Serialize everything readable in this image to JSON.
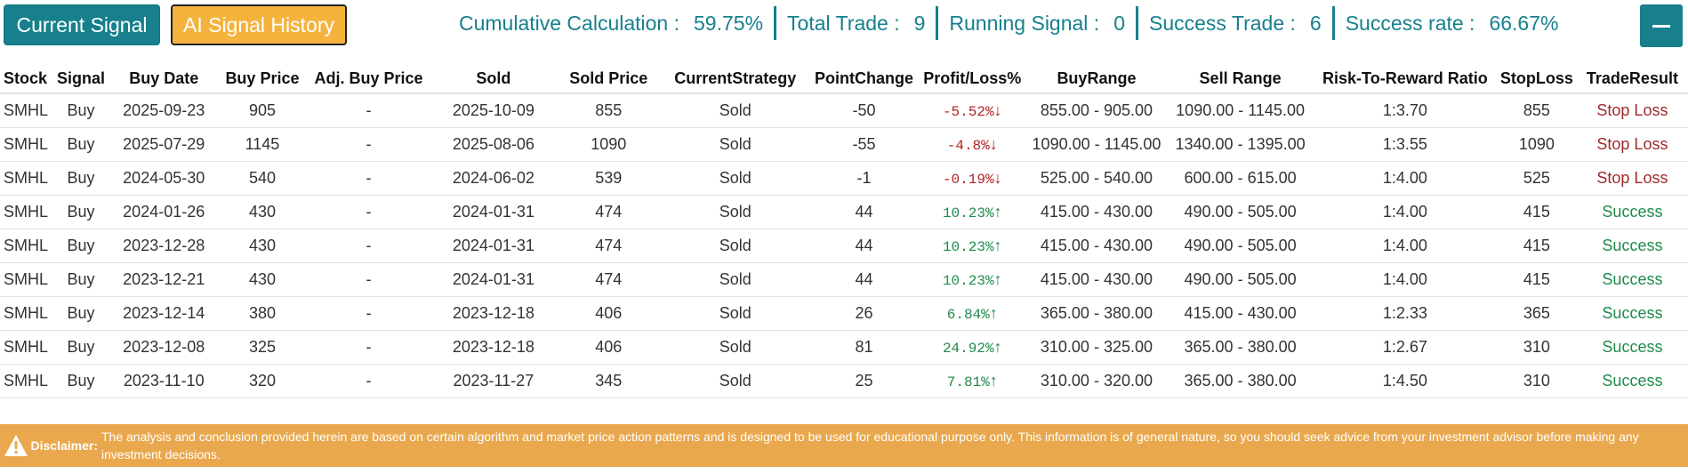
{
  "header": {
    "current_signal_label": "Current Signal",
    "history_label": "AI Signal History",
    "stats": [
      {
        "label": "Cumulative Calculation :",
        "value": "59.75%"
      },
      {
        "label": "Total Trade :",
        "value": "9"
      },
      {
        "label": "Running Signal :",
        "value": "0"
      },
      {
        "label": "Success Trade :",
        "value": "6"
      },
      {
        "label": "Success rate :",
        "value": "66.67%"
      }
    ]
  },
  "table": {
    "columns": [
      "Stock",
      "Signal",
      "Buy Date",
      "Buy Price",
      "Adj. Buy Price",
      "Sold",
      "Sold Price",
      "CurrentStrategy",
      "PointChange",
      "Profit/Loss%",
      "BuyRange",
      "Sell Range",
      "Risk-To-Reward Ratio",
      "StopLoss",
      "TradeResult"
    ],
    "rows": [
      {
        "stock": "SMHL",
        "signal": "Buy",
        "buy_date": "2025-09-23",
        "buy_price": "905",
        "adj_buy_price": "-",
        "sold": "2025-10-09",
        "sold_price": "855",
        "strategy": "Sold",
        "point_change": "-50",
        "pl": "-5.52%",
        "dir": "down",
        "buy_range": "855.00 - 905.00",
        "sell_range": "1090.00 - 1145.00",
        "rr": "1:3.70",
        "stop_loss": "855",
        "result": "Stop Loss"
      },
      {
        "stock": "SMHL",
        "signal": "Buy",
        "buy_date": "2025-07-29",
        "buy_price": "1145",
        "adj_buy_price": "-",
        "sold": "2025-08-06",
        "sold_price": "1090",
        "strategy": "Sold",
        "point_change": "-55",
        "pl": "-4.8%",
        "dir": "down",
        "buy_range": "1090.00 - 1145.00",
        "sell_range": "1340.00 - 1395.00",
        "rr": "1:3.55",
        "stop_loss": "1090",
        "result": "Stop Loss"
      },
      {
        "stock": "SMHL",
        "signal": "Buy",
        "buy_date": "2024-05-30",
        "buy_price": "540",
        "adj_buy_price": "-",
        "sold": "2024-06-02",
        "sold_price": "539",
        "strategy": "Sold",
        "point_change": "-1",
        "pl": "-0.19%",
        "dir": "down",
        "buy_range": "525.00 - 540.00",
        "sell_range": "600.00 - 615.00",
        "rr": "1:4.00",
        "stop_loss": "525",
        "result": "Stop Loss"
      },
      {
        "stock": "SMHL",
        "signal": "Buy",
        "buy_date": "2024-01-26",
        "buy_price": "430",
        "adj_buy_price": "-",
        "sold": "2024-01-31",
        "sold_price": "474",
        "strategy": "Sold",
        "point_change": "44",
        "pl": "10.23%",
        "dir": "up",
        "buy_range": "415.00 - 430.00",
        "sell_range": "490.00 - 505.00",
        "rr": "1:4.00",
        "stop_loss": "415",
        "result": "Success"
      },
      {
        "stock": "SMHL",
        "signal": "Buy",
        "buy_date": "2023-12-28",
        "buy_price": "430",
        "adj_buy_price": "-",
        "sold": "2024-01-31",
        "sold_price": "474",
        "strategy": "Sold",
        "point_change": "44",
        "pl": "10.23%",
        "dir": "up",
        "buy_range": "415.00 - 430.00",
        "sell_range": "490.00 - 505.00",
        "rr": "1:4.00",
        "stop_loss": "415",
        "result": "Success"
      },
      {
        "stock": "SMHL",
        "signal": "Buy",
        "buy_date": "2023-12-21",
        "buy_price": "430",
        "adj_buy_price": "-",
        "sold": "2024-01-31",
        "sold_price": "474",
        "strategy": "Sold",
        "point_change": "44",
        "pl": "10.23%",
        "dir": "up",
        "buy_range": "415.00 - 430.00",
        "sell_range": "490.00 - 505.00",
        "rr": "1:4.00",
        "stop_loss": "415",
        "result": "Success"
      },
      {
        "stock": "SMHL",
        "signal": "Buy",
        "buy_date": "2023-12-14",
        "buy_price": "380",
        "adj_buy_price": "-",
        "sold": "2023-12-18",
        "sold_price": "406",
        "strategy": "Sold",
        "point_change": "26",
        "pl": "6.84%",
        "dir": "up",
        "buy_range": "365.00 - 380.00",
        "sell_range": "415.00 - 430.00",
        "rr": "1:2.33",
        "stop_loss": "365",
        "result": "Success"
      },
      {
        "stock": "SMHL",
        "signal": "Buy",
        "buy_date": "2023-12-08",
        "buy_price": "325",
        "adj_buy_price": "-",
        "sold": "2023-12-18",
        "sold_price": "406",
        "strategy": "Sold",
        "point_change": "81",
        "pl": "24.92%",
        "dir": "up",
        "buy_range": "310.00 - 325.00",
        "sell_range": "365.00 - 380.00",
        "rr": "1:2.67",
        "stop_loss": "310",
        "result": "Success"
      },
      {
        "stock": "SMHL",
        "signal": "Buy",
        "buy_date": "2023-11-10",
        "buy_price": "320",
        "adj_buy_price": "-",
        "sold": "2023-11-27",
        "sold_price": "345",
        "strategy": "Sold",
        "point_change": "25",
        "pl": "7.81%",
        "dir": "up",
        "buy_range": "310.00 - 320.00",
        "sell_range": "365.00 - 380.00",
        "rr": "1:4.50",
        "stop_loss": "310",
        "result": "Success"
      }
    ]
  },
  "disclaimer": {
    "label": "Disclaimer:",
    "text": "The analysis and conclusion provided herein are based on certain algorithm and market price action patterns and is designed to be used for educational purpose only. This information is of general nature, so you should seek advice from your investment advisor before making any investment decisions."
  },
  "icons": {
    "minus": "minus-icon",
    "warning": "warning-icon",
    "up": "arrow-up-icon",
    "down": "arrow-down-icon"
  },
  "colors": {
    "teal": "#17808c",
    "amber": "#f5b33d",
    "disclaimer_bg": "#e9a84d",
    "positive": "#1f8a4c",
    "negative": "#b22222"
  }
}
